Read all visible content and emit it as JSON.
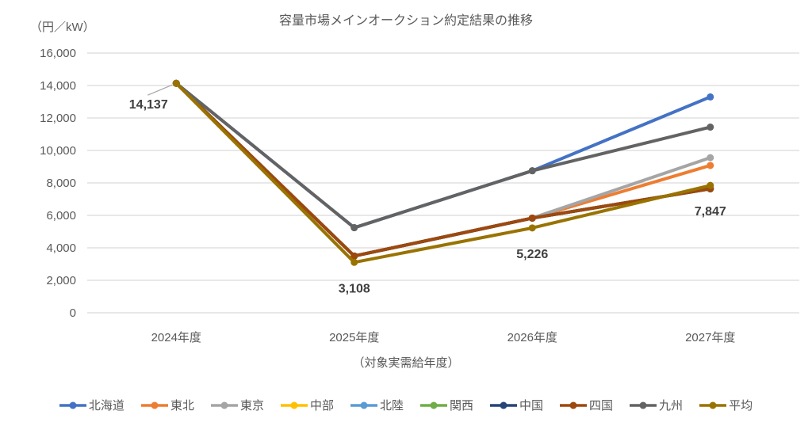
{
  "chart_data": {
    "type": "line",
    "title": "容量市場メインオークション約定結果の推移",
    "unit_label": "（円／kW）",
    "xlabel": "（対象実需給年度）",
    "categories": [
      "2024年度",
      "2025年度",
      "2026年度",
      "2027年度"
    ],
    "ylim": [
      0,
      16000
    ],
    "ytick_step": 2000,
    "grid": "horizontal-only",
    "legend_position": "bottom",
    "series": [
      {
        "name": "北海道",
        "color": "#4472C4",
        "values": [
          14137,
          5242,
          8748,
          13297
        ]
      },
      {
        "name": "東北",
        "color": "#ED7D31",
        "values": [
          14137,
          3495,
          5832,
          9076
        ]
      },
      {
        "name": "東京",
        "color": "#A5A5A5",
        "values": [
          14137,
          3495,
          5832,
          9555
        ]
      },
      {
        "name": "中部",
        "color": "#FFC000",
        "values": [
          14137,
          3495,
          5832,
          7638
        ]
      },
      {
        "name": "北陸",
        "color": "#5B9BD5",
        "values": [
          14137,
          3495,
          5832,
          7638
        ]
      },
      {
        "name": "関西",
        "color": "#70AD47",
        "values": [
          14137,
          3495,
          5832,
          7638
        ]
      },
      {
        "name": "中国",
        "color": "#264478",
        "values": [
          14137,
          3495,
          5832,
          7638
        ]
      },
      {
        "name": "四国",
        "color": "#9E480E",
        "values": [
          14137,
          3495,
          5832,
          7638
        ]
      },
      {
        "name": "九州",
        "color": "#636363",
        "values": [
          14137,
          5242,
          8748,
          11436
        ]
      },
      {
        "name": "平均",
        "color": "#997300",
        "values": [
          14137,
          3108,
          5226,
          7847
        ]
      }
    ],
    "annotations": [
      {
        "text": "14,137",
        "category_index": 0,
        "series": "平均",
        "placement": "left-leader"
      },
      {
        "text": "3,108",
        "category_index": 1,
        "series": "平均",
        "placement": "below"
      },
      {
        "text": "5,226",
        "category_index": 2,
        "series": "平均",
        "placement": "below"
      },
      {
        "text": "7,847",
        "category_index": 3,
        "series": "平均",
        "placement": "below"
      }
    ],
    "styles": {
      "title_color": "#595959",
      "axis_text_color": "#595959",
      "grid_color": "#D9D9D9",
      "annotation_color": "#404040",
      "leader_color": "#A6A6A6",
      "background": "#FFFFFF"
    }
  }
}
